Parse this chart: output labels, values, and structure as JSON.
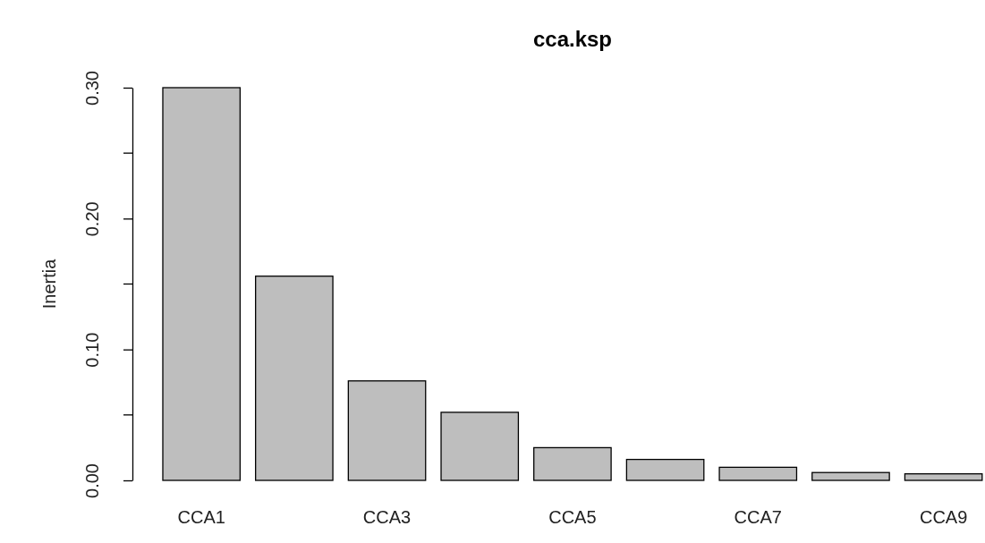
{
  "chart_data": {
    "type": "bar",
    "title": "cca.ksp",
    "ylabel": "Inertia",
    "categories": [
      "CCA1",
      null,
      "CCA3",
      null,
      "CCA5",
      null,
      "CCA7",
      null,
      "CCA9"
    ],
    "values": [
      0.3,
      0.156,
      0.076,
      0.052,
      0.025,
      0.016,
      0.01,
      0.006,
      0.005
    ],
    "color": "#bebebe",
    "ylim": [
      0,
      0.3
    ],
    "yticks": [
      {
        "value": 0,
        "label": "0.00"
      },
      {
        "value": 0.1,
        "label": "0.10"
      },
      {
        "value": 0.2,
        "label": "0.20"
      },
      {
        "value": 0.3,
        "label": "0.30"
      }
    ],
    "grid": false
  }
}
